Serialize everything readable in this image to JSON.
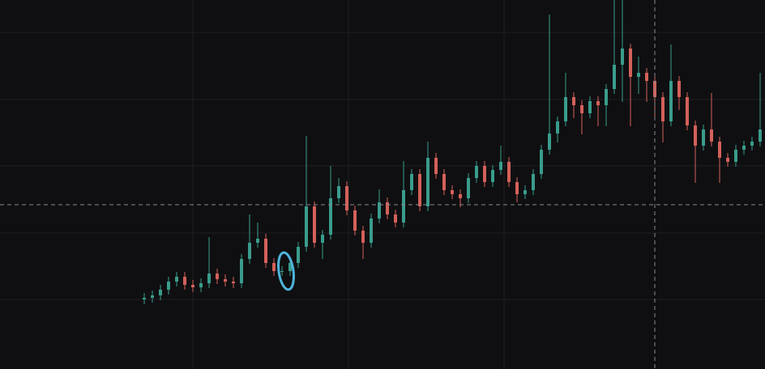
{
  "chart_data": {
    "type": "candlestick",
    "x": [
      178,
      188,
      198,
      208,
      218,
      228,
      238,
      248,
      258,
      268,
      278,
      288,
      298,
      308,
      318,
      328,
      338,
      348,
      358,
      368,
      378,
      388,
      398,
      408,
      418,
      428,
      438,
      448,
      458,
      468,
      478,
      488,
      498,
      508,
      518,
      528,
      538,
      548,
      558,
      568,
      578,
      588,
      598,
      608,
      618,
      628,
      638,
      648,
      658,
      668,
      678,
      688,
      698,
      708,
      718,
      728,
      738,
      748,
      758,
      768,
      778,
      788,
      798,
      808,
      818,
      828,
      838,
      848,
      858,
      868,
      878,
      888,
      898,
      908,
      918,
      928,
      938
    ],
    "open": [
      86,
      88,
      91,
      98,
      108,
      114,
      104,
      101,
      106,
      118,
      111,
      108,
      106,
      136,
      156,
      161,
      131,
      121,
      121,
      131,
      151,
      201,
      156,
      166,
      211,
      226,
      196,
      171,
      156,
      186,
      206,
      191,
      181,
      221,
      241,
      201,
      261,
      241,
      221,
      216,
      211,
      236,
      251,
      231,
      246,
      256,
      231,
      216,
      221,
      241,
      271,
      291,
      306,
      336,
      326,
      316,
      331,
      326,
      346,
      376,
      396,
      361,
      366,
      356,
      336,
      306,
      356,
      336,
      301,
      276,
      296,
      281,
      261,
      256,
      271,
      276,
      281
    ],
    "high": [
      94,
      97,
      104,
      114,
      120,
      120,
      110,
      112,
      163,
      124,
      117,
      114,
      142,
      191,
      181,
      167,
      137,
      127,
      137,
      157,
      288,
      207,
      172,
      251,
      236,
      232,
      202,
      177,
      192,
      222,
      212,
      197,
      257,
      247,
      247,
      281,
      267,
      247,
      227,
      222,
      242,
      257,
      257,
      252,
      276,
      262,
      237,
      227,
      247,
      277,
      438,
      312,
      366,
      342,
      332,
      337,
      337,
      352,
      456,
      456,
      402,
      386,
      372,
      362,
      342,
      401,
      362,
      342,
      307,
      302,
      341,
      287,
      267,
      277,
      282,
      287,
      366
    ],
    "low": [
      80,
      82,
      85,
      92,
      102,
      98,
      95,
      95,
      100,
      105,
      102,
      100,
      100,
      130,
      150,
      125,
      115,
      115,
      115,
      125,
      145,
      150,
      136,
      160,
      205,
      190,
      165,
      136,
      150,
      180,
      185,
      175,
      175,
      215,
      195,
      195,
      235,
      215,
      210,
      200,
      205,
      230,
      225,
      225,
      240,
      225,
      206,
      210,
      215,
      235,
      265,
      280,
      300,
      310,
      290,
      310,
      300,
      300,
      340,
      330,
      300,
      340,
      330,
      310,
      280,
      300,
      320,
      295,
      230,
      270,
      275,
      230,
      250,
      250,
      265,
      270,
      275
    ],
    "close": [
      88,
      91,
      98,
      108,
      114,
      104,
      101,
      106,
      118,
      111,
      108,
      106,
      136,
      156,
      161,
      131,
      121,
      121,
      131,
      151,
      201,
      156,
      166,
      211,
      226,
      196,
      171,
      156,
      186,
      206,
      191,
      181,
      221,
      241,
      201,
      261,
      241,
      221,
      216,
      211,
      236,
      251,
      231,
      246,
      256,
      231,
      216,
      221,
      241,
      271,
      291,
      306,
      336,
      326,
      316,
      331,
      326,
      346,
      376,
      396,
      361,
      366,
      356,
      336,
      306,
      356,
      336,
      301,
      276,
      296,
      281,
      261,
      256,
      271,
      276,
      281,
      296
    ],
    "up_color": "#3a9c8c",
    "down_color": "#d3615a",
    "xlim": [
      0,
      944
    ],
    "ylim": [
      0,
      456
    ],
    "xticks": [
      238,
      430,
      622
    ],
    "yticks": [
      86,
      168,
      251,
      333,
      416
    ],
    "grid": true,
    "crosshair": {
      "x": 808,
      "y": 203
    }
  }
}
